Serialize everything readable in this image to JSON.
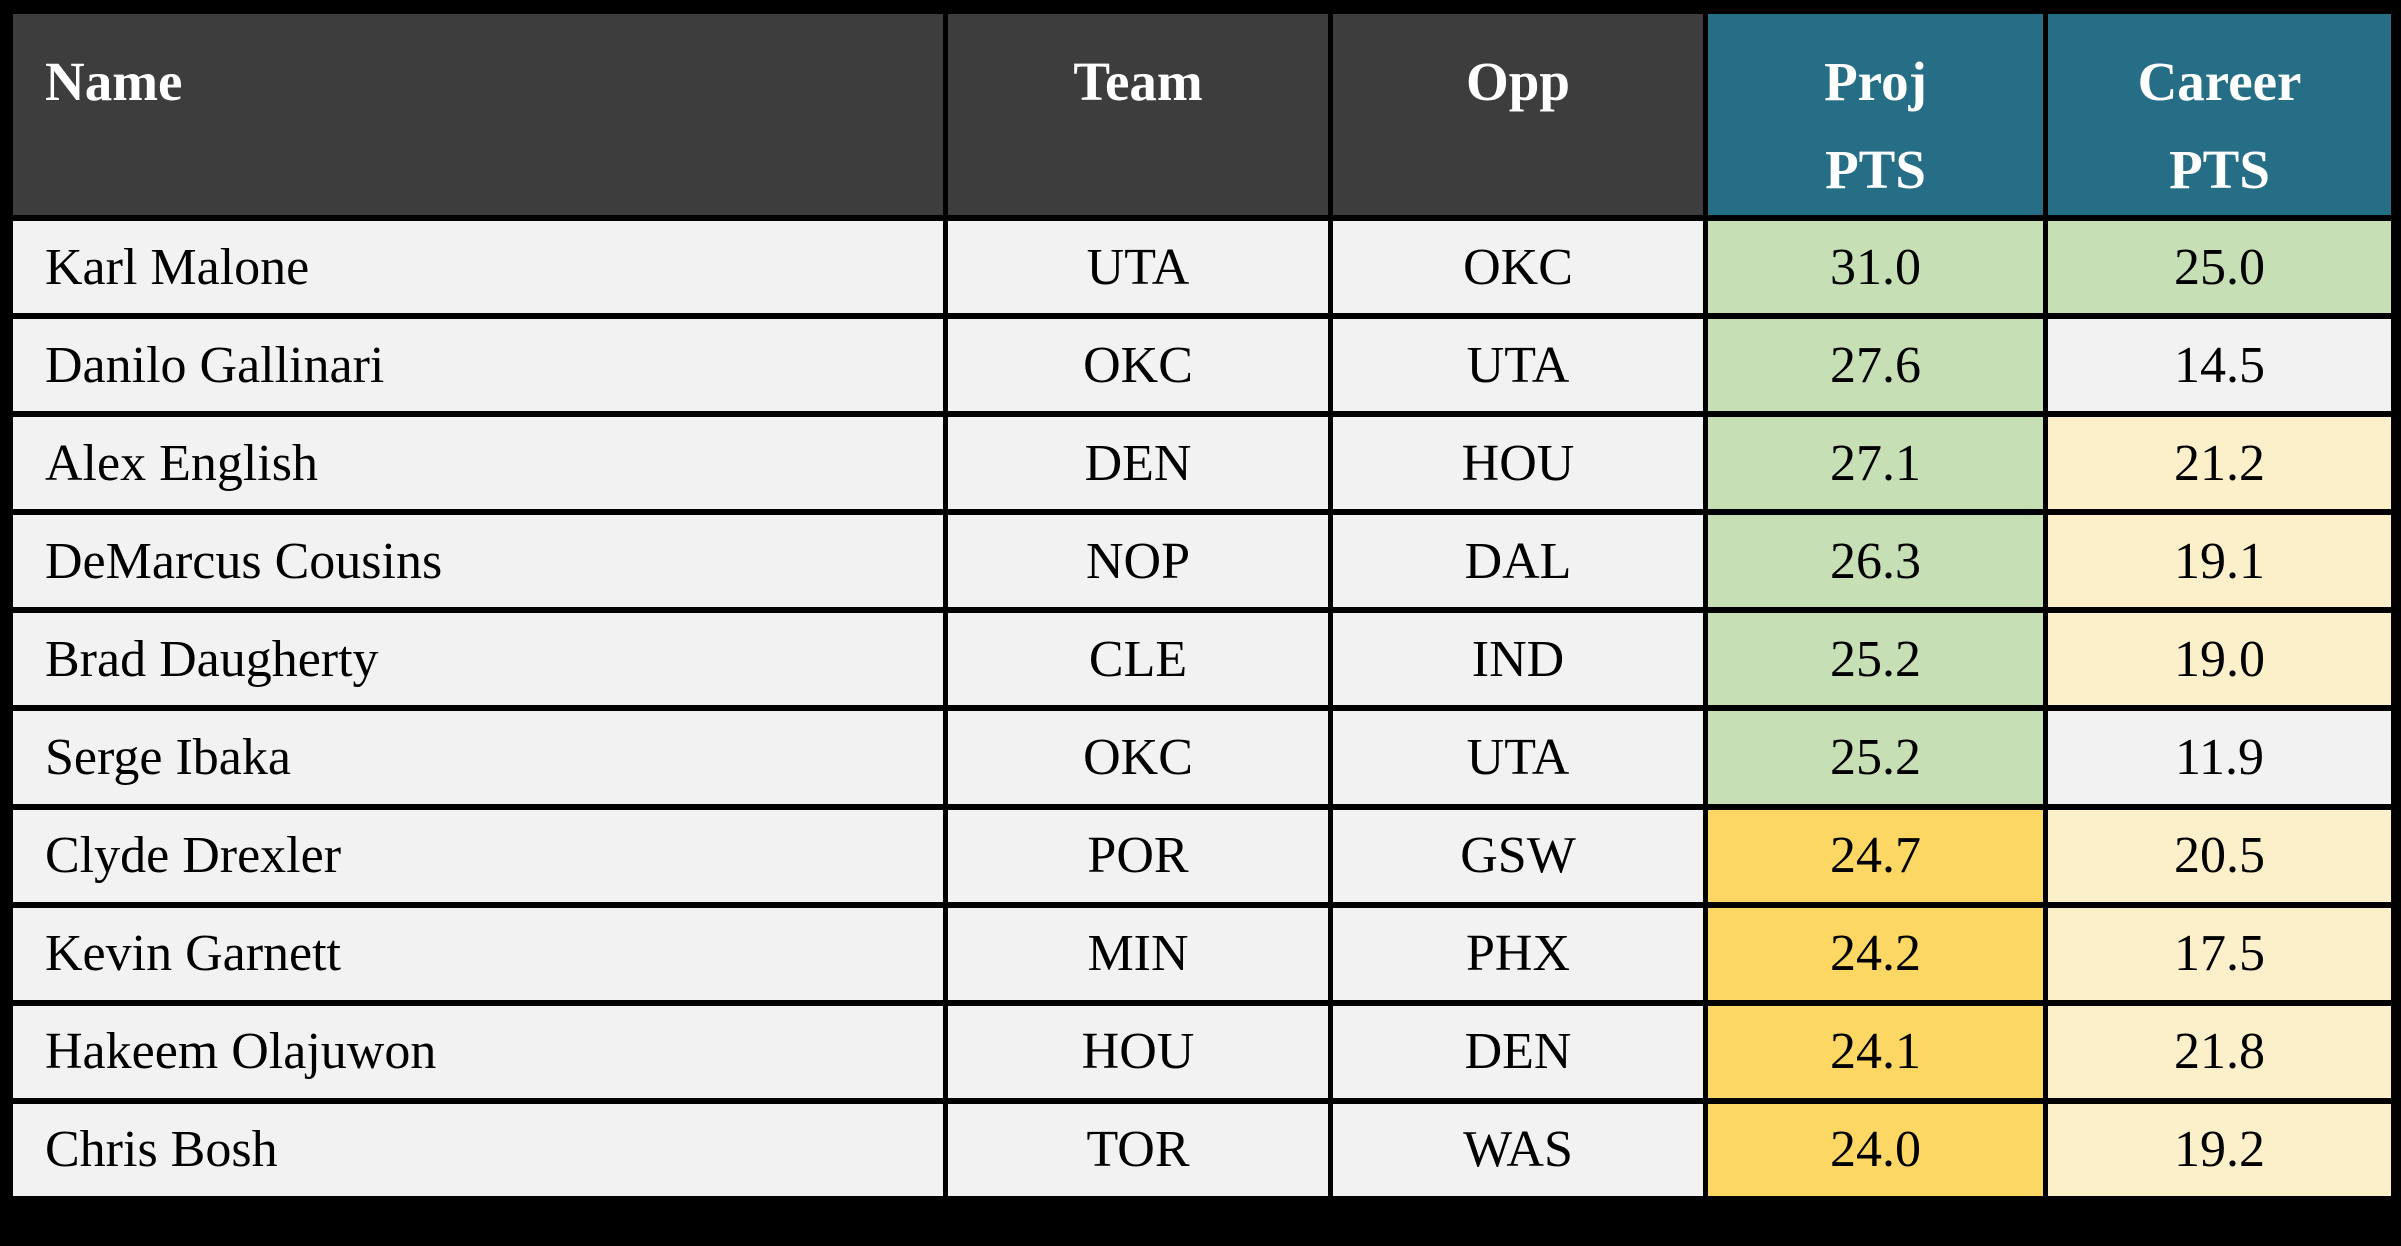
{
  "colors": {
    "canvas": "#000000",
    "headerDark": "#3d3d3d",
    "headerTeal": "#256e86",
    "rowBg": "#f2f2f2",
    "green": "#c6dfb4",
    "gold": "#fcd763",
    "lightGold": "#fcf0cb",
    "headerText": "#ffffff",
    "cellText": "#000000",
    "border": "#000000"
  },
  "table": {
    "columns": [
      {
        "key": "name",
        "label": "Name",
        "label_lines": [
          "Name"
        ]
      },
      {
        "key": "team",
        "label": "Team",
        "label_lines": [
          "Team"
        ]
      },
      {
        "key": "opp",
        "label": "Opp",
        "label_lines": [
          "Opp"
        ]
      },
      {
        "key": "proj_pts",
        "label": "Proj PTS",
        "label_lines": [
          "Proj",
          "PTS"
        ]
      },
      {
        "key": "career_pts",
        "label": "Career PTS",
        "label_lines": [
          "Career",
          "PTS"
        ]
      }
    ],
    "rows": [
      {
        "name": "Karl Malone",
        "team": "UTA",
        "opp": "OKC",
        "proj_pts": "31.0",
        "career_pts": "25.0",
        "proj_bg": "green",
        "career_bg": "green"
      },
      {
        "name": "Danilo Gallinari",
        "team": "OKC",
        "opp": "UTA",
        "proj_pts": "27.6",
        "career_pts": "14.5",
        "proj_bg": "green",
        "career_bg": "rowBg"
      },
      {
        "name": "Alex English",
        "team": "DEN",
        "opp": "HOU",
        "proj_pts": "27.1",
        "career_pts": "21.2",
        "proj_bg": "green",
        "career_bg": "lightGold"
      },
      {
        "name": "DeMarcus Cousins",
        "team": "NOP",
        "opp": "DAL",
        "proj_pts": "26.3",
        "career_pts": "19.1",
        "proj_bg": "green",
        "career_bg": "lightGold"
      },
      {
        "name": "Brad Daugherty",
        "team": "CLE",
        "opp": "IND",
        "proj_pts": "25.2",
        "career_pts": "19.0",
        "proj_bg": "green",
        "career_bg": "lightGold"
      },
      {
        "name": "Serge Ibaka",
        "team": "OKC",
        "opp": "UTA",
        "proj_pts": "25.2",
        "career_pts": "11.9",
        "proj_bg": "green",
        "career_bg": "rowBg"
      },
      {
        "name": "Clyde Drexler",
        "team": "POR",
        "opp": "GSW",
        "proj_pts": "24.7",
        "career_pts": "20.5",
        "proj_bg": "gold",
        "career_bg": "lightGold"
      },
      {
        "name": "Kevin Garnett",
        "team": "MIN",
        "opp": "PHX",
        "proj_pts": "24.2",
        "career_pts": "17.5",
        "proj_bg": "gold",
        "career_bg": "lightGold"
      },
      {
        "name": "Hakeem Olajuwon",
        "team": "HOU",
        "opp": "DEN",
        "proj_pts": "24.1",
        "career_pts": "21.8",
        "proj_bg": "gold",
        "career_bg": "lightGold"
      },
      {
        "name": "Chris Bosh",
        "team": "TOR",
        "opp": "WAS",
        "proj_pts": "24.0",
        "career_pts": "19.2",
        "proj_bg": "gold",
        "career_bg": "lightGold"
      }
    ]
  },
  "chart_data": {
    "type": "table",
    "columns": [
      "Name",
      "Team",
      "Opp",
      "Proj PTS",
      "Career PTS"
    ],
    "rows": [
      [
        "Karl Malone",
        "UTA",
        "OKC",
        31.0,
        25.0
      ],
      [
        "Danilo Gallinari",
        "OKC",
        "UTA",
        27.6,
        14.5
      ],
      [
        "Alex English",
        "DEN",
        "HOU",
        27.1,
        21.2
      ],
      [
        "DeMarcus Cousins",
        "NOP",
        "DAL",
        26.3,
        19.1
      ],
      [
        "Brad Daugherty",
        "CLE",
        "IND",
        25.2,
        19.0
      ],
      [
        "Serge Ibaka",
        "OKC",
        "UTA",
        25.2,
        11.9
      ],
      [
        "Clyde Drexler",
        "POR",
        "GSW",
        24.7,
        20.5
      ],
      [
        "Kevin Garnett",
        "MIN",
        "PHX",
        24.2,
        17.5
      ],
      [
        "Hakeem Olajuwon",
        "HOU",
        "DEN",
        24.1,
        21.8
      ],
      [
        "Chris Bosh",
        "TOR",
        "WAS",
        24.0,
        19.2
      ]
    ],
    "layout_hints": {
      "header_groups": {
        "dark_columns": [
          "Name",
          "Team",
          "Opp"
        ],
        "teal_columns": [
          "Proj PTS",
          "Career PTS"
        ]
      },
      "cell_highlighting": "Proj PTS >= 25.2 green else gold; Career PTS >= 25 green, 17.5-21.8 light gold, < 15 plain"
    }
  }
}
